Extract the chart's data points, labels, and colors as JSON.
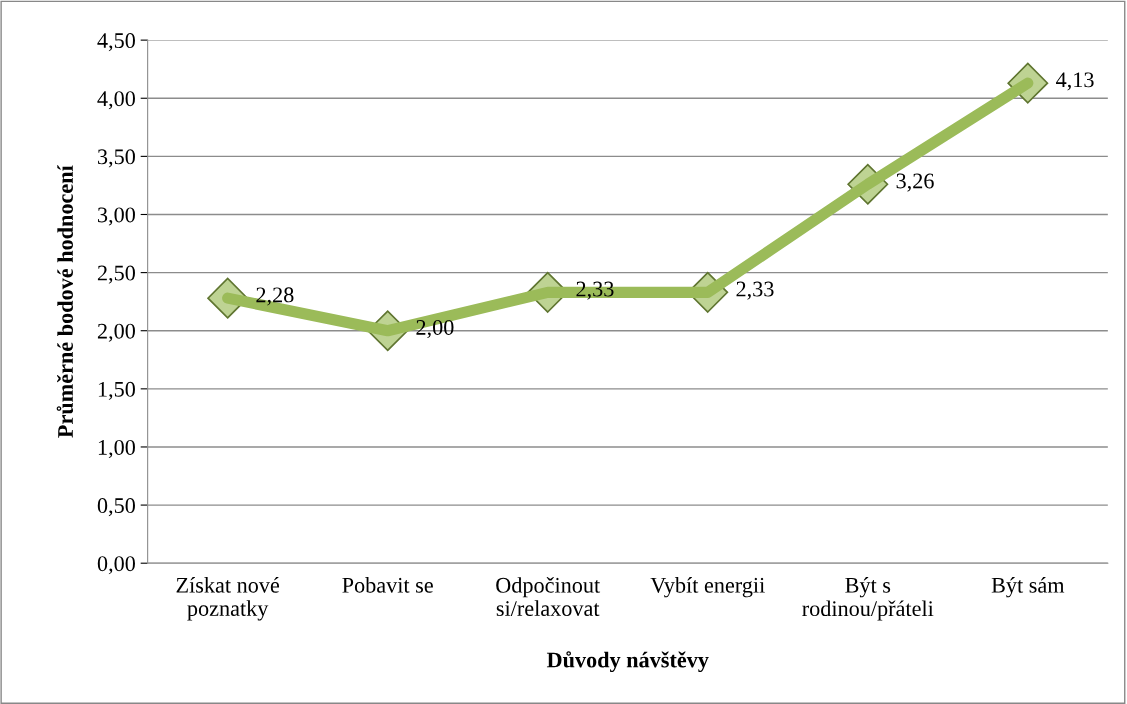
{
  "chart_data": {
    "type": "line",
    "xlabel": "Důvody návštěvy",
    "ylabel": "Průměrné bodové hodnocení",
    "categories": [
      "Získat nové\npoznatky",
      "Pobavit se",
      "Odpočinout\nsi/relaxovat",
      "Vybít energii",
      "Být s\nrodinou/přáteli",
      "Být sám"
    ],
    "series": [
      {
        "color": "#9bbb59",
        "values": [
          2.28,
          2.0,
          2.33,
          2.33,
          3.26,
          4.13
        ],
        "value_labels": [
          "2,28",
          "2,00",
          "2,33",
          "2,33",
          "3,26",
          "4,13"
        ]
      }
    ],
    "ylim": [
      0,
      4.5
    ],
    "yticks": [
      {
        "value": 0,
        "label": "0,00"
      },
      {
        "value": 0.5,
        "label": "0,50"
      },
      {
        "value": 1,
        "label": "1,00"
      },
      {
        "value": 1.5,
        "label": "1,50"
      },
      {
        "value": 2,
        "label": "2,00"
      },
      {
        "value": 2.5,
        "label": "2,50"
      },
      {
        "value": 3,
        "label": "3,00"
      },
      {
        "value": 3.5,
        "label": "3,50"
      },
      {
        "value": 4,
        "label": "4,00"
      },
      {
        "value": 4.5,
        "label": "4,50"
      }
    ],
    "grid": "y",
    "legend": false,
    "marker": "diamond",
    "line_style": "solid"
  }
}
